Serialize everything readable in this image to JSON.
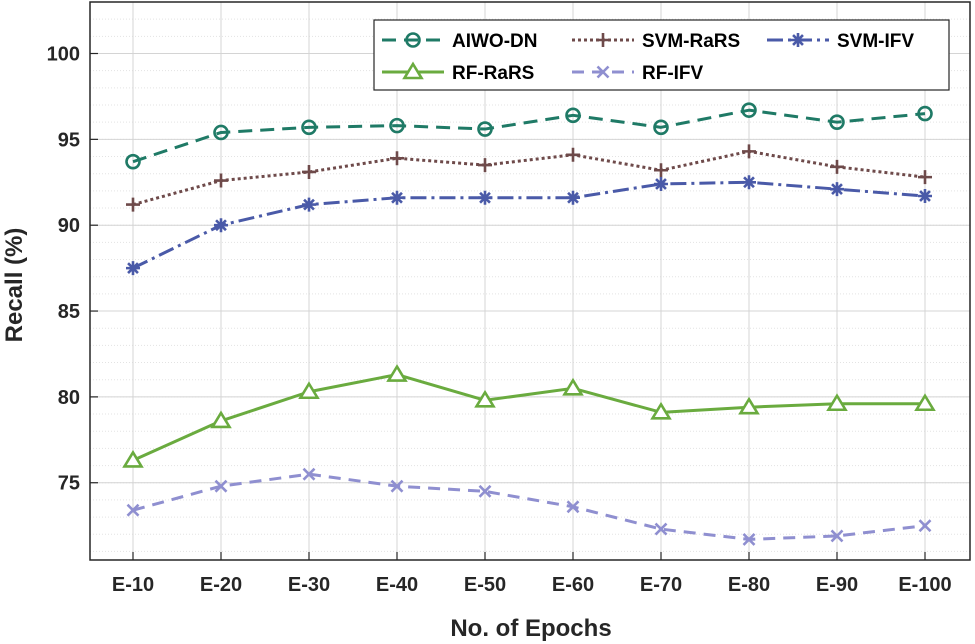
{
  "chart_data": {
    "type": "line",
    "title": "",
    "xlabel": "No. of Epochs",
    "ylabel": "Recall (%)",
    "categories": [
      "E-10",
      "E-20",
      "E-30",
      "E-40",
      "E-50",
      "E-60",
      "E-70",
      "E-80",
      "E-90",
      "E-100"
    ],
    "ylim": [
      70.5,
      103
    ],
    "yticks": [
      75,
      80,
      85,
      90,
      95,
      100
    ],
    "grid": true,
    "legend_position": "top-right",
    "series": [
      {
        "name": "AIWO-DN",
        "color": "#1f7a66",
        "dash": "14,8",
        "marker": "circle-open",
        "values": [
          93.7,
          95.4,
          95.7,
          95.8,
          95.6,
          96.4,
          95.7,
          96.7,
          96.0,
          96.5
        ]
      },
      {
        "name": "SVM-RaRS",
        "color": "#6e4a4a",
        "dash": "3,3",
        "marker": "plus",
        "values": [
          91.2,
          92.6,
          93.1,
          93.9,
          93.5,
          94.1,
          93.2,
          94.3,
          93.4,
          92.8
        ]
      },
      {
        "name": "SVM-IFV",
        "color": "#4a5aa8",
        "dash": "16,5,3,5",
        "marker": "asterisk",
        "values": [
          87.5,
          90.0,
          91.2,
          91.6,
          91.6,
          91.6,
          92.4,
          92.5,
          92.1,
          91.7
        ]
      },
      {
        "name": "RF-RaRS",
        "color": "#6aab3f",
        "dash": "",
        "marker": "triangle-open",
        "values": [
          76.3,
          78.6,
          80.3,
          81.3,
          79.8,
          80.5,
          79.1,
          79.4,
          79.6,
          79.6
        ]
      },
      {
        "name": "RF-IFV",
        "color": "#8f8fd0",
        "dash": "12,8",
        "marker": "x",
        "values": [
          73.4,
          74.8,
          75.5,
          74.8,
          74.5,
          73.6,
          72.3,
          71.7,
          71.9,
          72.5
        ]
      }
    ]
  }
}
